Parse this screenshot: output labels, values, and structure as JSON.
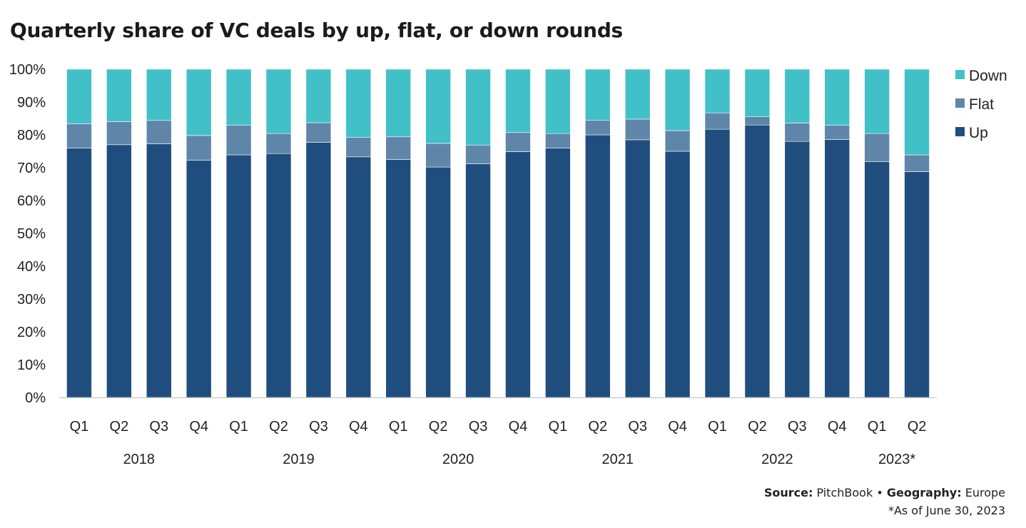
{
  "chart_data": {
    "type": "bar",
    "stacked": true,
    "title": "Quarterly share of VC deals by up, flat, or down rounds",
    "categories": [
      "Q1",
      "Q2",
      "Q3",
      "Q4",
      "Q1",
      "Q2",
      "Q3",
      "Q4",
      "Q1",
      "Q2",
      "Q3",
      "Q4",
      "Q1",
      "Q2",
      "Q3",
      "Q4",
      "Q1",
      "Q2",
      "Q3",
      "Q4",
      "Q1",
      "Q2"
    ],
    "years": [
      {
        "label": "2018",
        "quarters": 4
      },
      {
        "label": "2019",
        "quarters": 4
      },
      {
        "label": "2020",
        "quarters": 4
      },
      {
        "label": "2021",
        "quarters": 4
      },
      {
        "label": "2022",
        "quarters": 4
      },
      {
        "label": "2023*",
        "quarters": 2
      }
    ],
    "series": [
      {
        "name": "Up",
        "color": "#1f4e7e",
        "values": [
          76.0,
          77.0,
          77.3,
          72.3,
          73.9,
          74.3,
          77.7,
          73.3,
          72.5,
          70.2,
          71.2,
          74.9,
          76.0,
          80.0,
          78.5,
          75.0,
          81.7,
          83.0,
          78.0,
          78.6,
          71.8,
          68.8
        ]
      },
      {
        "name": "Flat",
        "color": "#5f86a8",
        "values": [
          7.4,
          7.0,
          7.1,
          7.5,
          9.0,
          6.1,
          6.0,
          5.9,
          6.9,
          7.2,
          5.7,
          5.8,
          4.4,
          4.5,
          6.3,
          6.3,
          5.0,
          2.5,
          5.6,
          4.3,
          8.6,
          5.1
        ]
      },
      {
        "name": "Down",
        "color": "#42c0c8",
        "values": [
          16.6,
          16.0,
          15.6,
          20.2,
          17.1,
          19.6,
          16.3,
          20.8,
          20.6,
          22.6,
          23.1,
          19.3,
          19.6,
          15.5,
          15.2,
          18.7,
          13.3,
          14.5,
          16.4,
          17.1,
          19.6,
          26.1
        ]
      }
    ],
    "yticks": [
      "0%",
      "10%",
      "20%",
      "30%",
      "40%",
      "50%",
      "60%",
      "70%",
      "80%",
      "90%",
      "100%"
    ],
    "ylim": [
      0,
      100
    ],
    "grid": false,
    "legend": "right"
  },
  "source": {
    "source_label": "Source:",
    "source_value": "PitchBook",
    "separator": "•",
    "geo_label": "Geography:",
    "geo_value": "Europe"
  },
  "note": "*As of June 30, 2023"
}
